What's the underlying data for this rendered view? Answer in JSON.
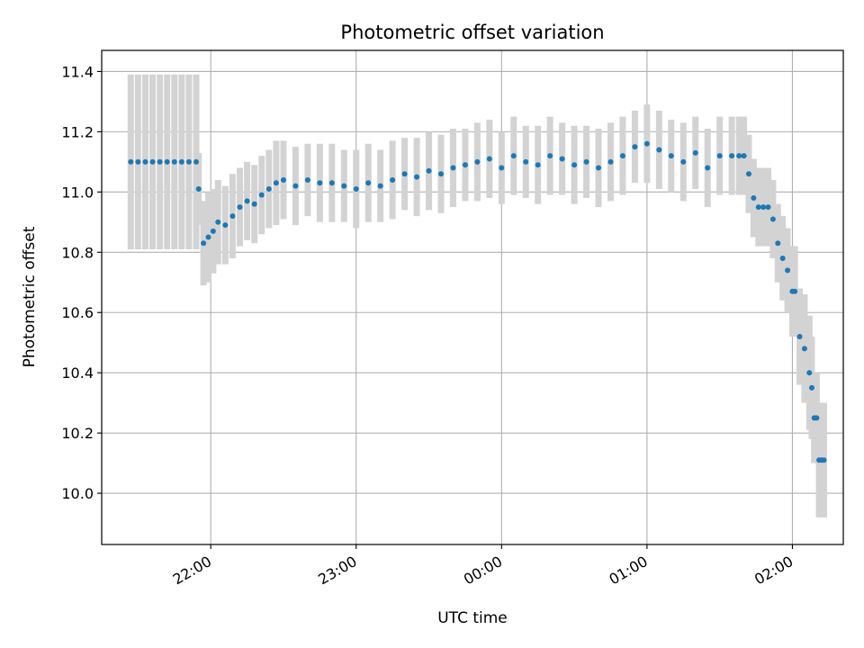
{
  "chart_data": {
    "type": "scatter",
    "title": "Photometric offset variation",
    "xlabel": "UTC time",
    "ylabel": "Photometric offset",
    "x_unit": "UTC datetime",
    "x_range": [
      "2023-01-01T21:15:00",
      "2023-01-02T02:21:00"
    ],
    "x_ticks": [
      "22:00",
      "23:00",
      "00:00",
      "01:00",
      "02:00"
    ],
    "ylim": [
      9.83,
      11.47
    ],
    "y_ticks": [
      10.0,
      10.2,
      10.4,
      10.6,
      10.8,
      11.0,
      11.2,
      11.4
    ],
    "y_tick_labels": [
      "10.0",
      "10.2",
      "10.4",
      "10.6",
      "10.8",
      "11.0",
      "11.2",
      "11.4"
    ],
    "grid": true,
    "colors": {
      "points": "#1f77b4",
      "errorbars": "#d3d3d3",
      "grid": "#b0b0b0"
    },
    "series": [
      {
        "x": [
          "2023-01-01T21:27:00",
          "2023-01-01T21:30:00",
          "2023-01-01T21:33:00",
          "2023-01-01T21:36:00",
          "2023-01-01T21:39:00",
          "2023-01-01T21:42:00",
          "2023-01-01T21:45:00",
          "2023-01-01T21:48:00",
          "2023-01-01T21:51:00",
          "2023-01-01T21:54:00",
          "2023-01-01T21:55:00",
          "2023-01-01T21:57:00",
          "2023-01-01T21:59:00",
          "2023-01-01T22:01:00",
          "2023-01-01T22:03:00",
          "2023-01-01T22:06:00",
          "2023-01-01T22:09:00",
          "2023-01-01T22:12:00",
          "2023-01-01T22:15:00",
          "2023-01-01T22:18:00",
          "2023-01-01T22:21:00",
          "2023-01-01T22:24:00",
          "2023-01-01T22:27:00",
          "2023-01-01T22:30:00",
          "2023-01-01T22:35:00",
          "2023-01-01T22:40:00",
          "2023-01-01T22:45:00",
          "2023-01-01T22:50:00",
          "2023-01-01T22:55:00",
          "2023-01-01T23:00:00",
          "2023-01-01T23:05:00",
          "2023-01-01T23:10:00",
          "2023-01-01T23:15:00",
          "2023-01-01T23:20:00",
          "2023-01-01T23:25:00",
          "2023-01-01T23:30:00",
          "2023-01-01T23:35:00",
          "2023-01-01T23:40:00",
          "2023-01-01T23:45:00",
          "2023-01-01T23:50:00",
          "2023-01-01T23:55:00",
          "2023-01-02T00:00:00",
          "2023-01-02T00:05:00",
          "2023-01-02T00:10:00",
          "2023-01-02T00:15:00",
          "2023-01-02T00:20:00",
          "2023-01-02T00:25:00",
          "2023-01-02T00:30:00",
          "2023-01-02T00:35:00",
          "2023-01-02T00:40:00",
          "2023-01-02T00:45:00",
          "2023-01-02T00:50:00",
          "2023-01-02T00:55:00",
          "2023-01-02T01:00:00",
          "2023-01-02T01:05:00",
          "2023-01-02T01:10:00",
          "2023-01-02T01:15:00",
          "2023-01-02T01:20:00",
          "2023-01-02T01:25:00",
          "2023-01-02T01:30:00",
          "2023-01-02T01:35:00",
          "2023-01-02T01:38:00",
          "2023-01-02T01:40:00",
          "2023-01-02T01:42:00",
          "2023-01-02T01:44:00",
          "2023-01-02T01:46:00",
          "2023-01-02T01:48:00",
          "2023-01-02T01:50:00",
          "2023-01-02T01:52:00",
          "2023-01-02T01:54:00",
          "2023-01-02T01:56:00",
          "2023-01-02T01:58:00",
          "2023-01-02T02:00:00",
          "2023-01-02T02:01:00",
          "2023-01-02T02:03:00",
          "2023-01-02T02:05:00",
          "2023-01-02T02:07:00"
        ],
        "y": [
          11.1,
          11.1,
          11.1,
          11.1,
          11.1,
          11.1,
          11.1,
          11.1,
          11.1,
          11.1,
          11.01,
          10.83,
          10.85,
          10.87,
          10.9,
          10.89,
          10.92,
          10.95,
          10.97,
          10.96,
          10.99,
          11.01,
          11.03,
          11.04,
          11.02,
          11.04,
          11.03,
          11.03,
          11.02,
          11.01,
          11.03,
          11.02,
          11.04,
          11.06,
          11.05,
          11.07,
          11.06,
          11.08,
          11.09,
          11.1,
          11.11,
          11.08,
          11.12,
          11.1,
          11.09,
          11.12,
          11.11,
          11.09,
          11.1,
          11.08,
          11.1,
          11.12,
          11.15,
          11.16,
          11.14,
          11.12,
          11.1,
          11.13,
          11.08,
          11.12,
          11.12,
          11.12,
          11.12,
          11.06,
          10.98,
          10.95,
          10.95,
          10.95,
          10.91,
          10.83,
          10.78,
          10.74,
          10.67,
          10.67,
          10.52,
          10.48,
          10.4
        ],
        "yerr": [
          0.29,
          0.29,
          0.29,
          0.29,
          0.29,
          0.29,
          0.29,
          0.29,
          0.29,
          0.29,
          0.12,
          0.14,
          0.15,
          0.14,
          0.14,
          0.13,
          0.14,
          0.13,
          0.13,
          0.13,
          0.13,
          0.13,
          0.14,
          0.13,
          0.13,
          0.12,
          0.13,
          0.13,
          0.12,
          0.13,
          0.13,
          0.12,
          0.13,
          0.12,
          0.13,
          0.13,
          0.13,
          0.13,
          0.12,
          0.13,
          0.13,
          0.12,
          0.13,
          0.12,
          0.13,
          0.13,
          0.12,
          0.13,
          0.12,
          0.13,
          0.13,
          0.13,
          0.12,
          0.13,
          0.13,
          0.12,
          0.13,
          0.12,
          0.13,
          0.13,
          0.13,
          0.13,
          0.13,
          0.13,
          0.13,
          0.13,
          0.13,
          0.13,
          0.13,
          0.13,
          0.14,
          0.14,
          0.15,
          0.15,
          0.16,
          0.18,
          0.19
        ]
      },
      {
        "x": [
          "2023-01-02T02:08:00",
          "2023-01-02T02:09:00",
          "2023-01-02T02:10:00",
          "2023-01-02T02:11:00",
          "2023-01-02T02:12:00",
          "2023-01-02T02:13:00"
        ],
        "y": [
          10.35,
          10.25,
          10.25,
          10.11,
          10.11,
          10.11
        ],
        "yerr": [
          0.17,
          0.15,
          0.15,
          0.19,
          0.19,
          0.19
        ]
      }
    ]
  }
}
